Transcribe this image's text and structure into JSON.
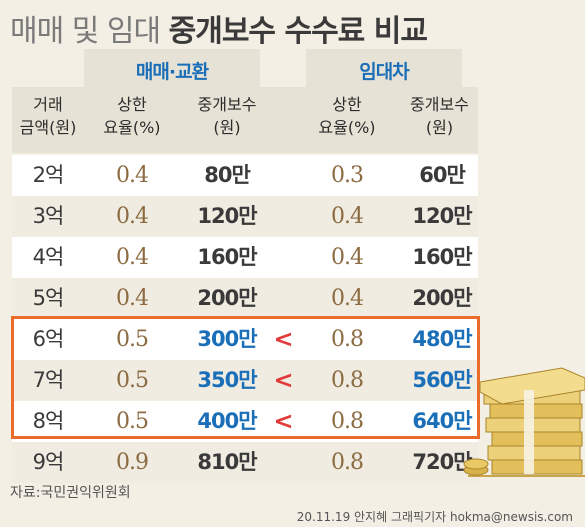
{
  "title": {
    "plain": "매매 및 임대",
    "bold": "중개보수 수수료 비교"
  },
  "groups": {
    "sale": "매매·교환",
    "lease": "임대차"
  },
  "headers": {
    "amount": "거래\n금액(원)",
    "sale_rate": "상한\n요율(%)",
    "sale_fee": "중개보수\n(원)",
    "lease_rate": "상한\n요율(%)",
    "lease_fee": "중개보수\n(원)"
  },
  "rows": [
    {
      "amount": "2억",
      "sale_rate": "0.4",
      "sale_fee": "80만",
      "cmp": "",
      "lease_rate": "0.3",
      "lease_fee": "60만"
    },
    {
      "amount": "3억",
      "sale_rate": "0.4",
      "sale_fee": "120만",
      "cmp": "",
      "lease_rate": "0.4",
      "lease_fee": "120만"
    },
    {
      "amount": "4억",
      "sale_rate": "0.4",
      "sale_fee": "160만",
      "cmp": "",
      "lease_rate": "0.4",
      "lease_fee": "160만"
    },
    {
      "amount": "5억",
      "sale_rate": "0.4",
      "sale_fee": "200만",
      "cmp": "",
      "lease_rate": "0.4",
      "lease_fee": "200만"
    },
    {
      "amount": "6억",
      "sale_rate": "0.5",
      "sale_fee": "300만",
      "cmp": "<",
      "lease_rate": "0.8",
      "lease_fee": "480만"
    },
    {
      "amount": "7억",
      "sale_rate": "0.5",
      "sale_fee": "350만",
      "cmp": "<",
      "lease_rate": "0.8",
      "lease_fee": "560만"
    },
    {
      "amount": "8억",
      "sale_rate": "0.5",
      "sale_fee": "400만",
      "cmp": "<",
      "lease_rate": "0.8",
      "lease_fee": "640만"
    },
    {
      "amount": "9억",
      "sale_rate": "0.9",
      "sale_fee": "810만",
      "cmp": "",
      "lease_rate": "0.8",
      "lease_fee": "720만"
    }
  ],
  "source": "자료:국민권익위원회",
  "credit": "20.11.19 안지혜 그래픽기자 hokma@newsis.com",
  "colors": {
    "accent_blue": "#1b6fb8",
    "highlight_border": "#ec6b2a",
    "less_than": "#e23b3b",
    "rate": "#8c6b42"
  },
  "illustration": "stack-of-cash-icon"
}
